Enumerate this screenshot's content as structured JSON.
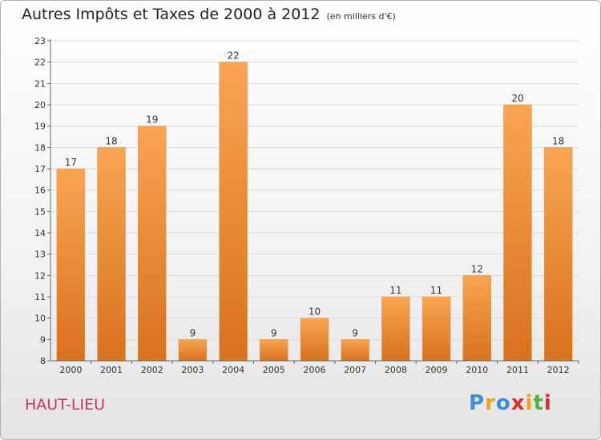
{
  "header": {
    "title": "Autres Impôts et Taxes de 2000 à 2012",
    "subtitle": "(en milliers d'€)"
  },
  "commune": "HAUT-LIEU",
  "logo": {
    "letters": [
      "P",
      "r",
      "o",
      "x",
      "i",
      "t",
      "i"
    ],
    "colors": [
      "#3b8fd9",
      "#f0a020",
      "#3b8fd9",
      "#d9302c",
      "#f0a020",
      "#55b040",
      "#d9302c"
    ]
  },
  "colors": {
    "bar_top": "#f8a552",
    "bar_bottom": "#d8711e",
    "grid": "#d9d9d9"
  },
  "chart_data": {
    "type": "bar",
    "categories": [
      "2000",
      "2001",
      "2002",
      "2003",
      "2004",
      "2005",
      "2006",
      "2007",
      "2008",
      "2009",
      "2010",
      "2011",
      "2012"
    ],
    "values": [
      17,
      18,
      19,
      9,
      22,
      9,
      10,
      9,
      11,
      11,
      12,
      20,
      18
    ],
    "data_labels": [
      "17",
      "18",
      "19",
      "9",
      "22",
      "9",
      "10",
      "9",
      "11",
      "11",
      "12",
      "20",
      "18"
    ],
    "title": "Autres Impôts et Taxes de 2000 à 2012",
    "xlabel": "",
    "ylabel": "",
    "ylim": [
      8,
      23
    ],
    "yticks": [
      "8",
      "9",
      "10",
      "11",
      "12",
      "13",
      "14",
      "15",
      "16",
      "17",
      "18",
      "19",
      "20",
      "21",
      "22",
      "23"
    ],
    "grid": true
  }
}
